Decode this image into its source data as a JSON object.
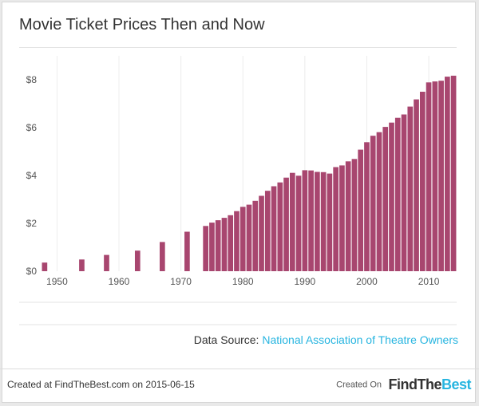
{
  "title": "Movie Ticket Prices Then and Now",
  "source": {
    "label": "Data Source:",
    "link_text": "National Association of Theatre Owners"
  },
  "footer": {
    "created_text": "Created at FindTheBest.com on 2015-06-15",
    "created_on": "Created On",
    "brand_part1": "FindThe",
    "brand_part2": "Best"
  },
  "colors": {
    "bar": "#a8466f",
    "accent": "#27b5e0",
    "grid": "#ececec"
  },
  "chart_data": {
    "type": "bar",
    "title": "Movie Ticket Prices Then and Now",
    "xlabel": "",
    "ylabel": "",
    "xlim": [
      1947.5,
      2014.5
    ],
    "ylim": [
      0,
      9
    ],
    "xticks": [
      1950,
      1960,
      1970,
      1980,
      1990,
      2000,
      2010
    ],
    "xtick_labels": [
      "1950",
      "1960",
      "1970",
      "1980",
      "1990",
      "2000",
      "2010"
    ],
    "yticks": [
      0,
      2,
      4,
      6,
      8
    ],
    "ytick_labels": [
      "$0",
      "$2",
      "$4",
      "$6",
      "$8"
    ],
    "grid": "vertical",
    "x": [
      1948,
      1954,
      1958,
      1963,
      1967,
      1971,
      1974,
      1975,
      1976,
      1977,
      1978,
      1979,
      1980,
      1981,
      1982,
      1983,
      1984,
      1985,
      1986,
      1987,
      1988,
      1989,
      1990,
      1991,
      1992,
      1993,
      1994,
      1995,
      1996,
      1997,
      1998,
      1999,
      2000,
      2001,
      2002,
      2003,
      2004,
      2005,
      2006,
      2007,
      2008,
      2009,
      2010,
      2011,
      2012,
      2013,
      2014
    ],
    "values": [
      0.36,
      0.49,
      0.68,
      0.86,
      1.22,
      1.65,
      1.89,
      2.03,
      2.13,
      2.23,
      2.34,
      2.51,
      2.69,
      2.78,
      2.94,
      3.15,
      3.36,
      3.55,
      3.71,
      3.91,
      4.11,
      3.99,
      4.22,
      4.21,
      4.15,
      4.14,
      4.08,
      4.35,
      4.42,
      4.59,
      4.69,
      5.08,
      5.39,
      5.66,
      5.81,
      6.03,
      6.21,
      6.41,
      6.55,
      6.88,
      7.18,
      7.5,
      7.89,
      7.93,
      7.96,
      8.13,
      8.17
    ]
  }
}
